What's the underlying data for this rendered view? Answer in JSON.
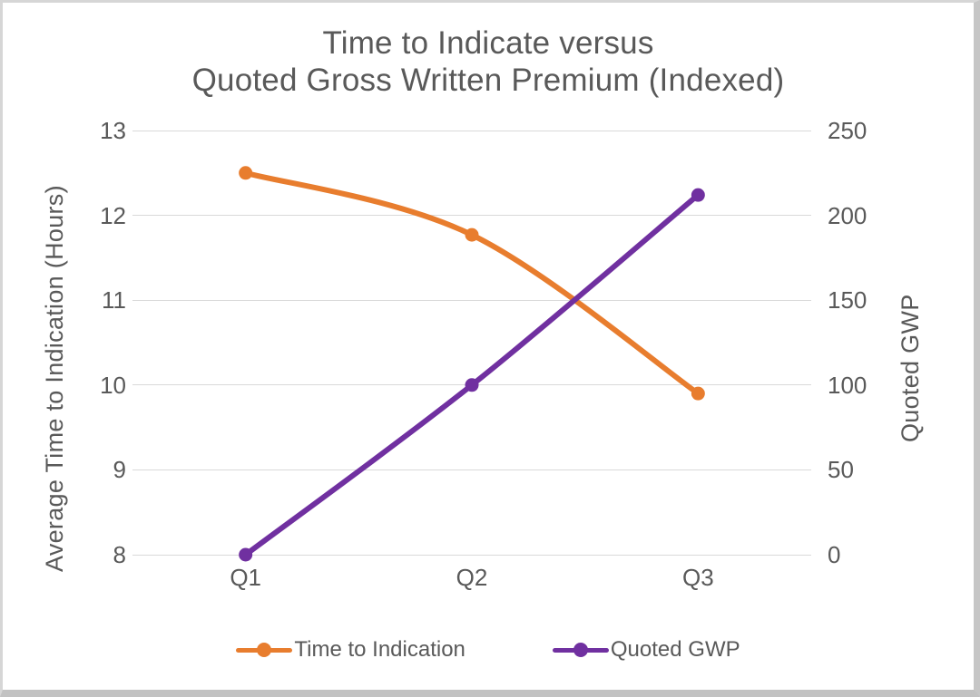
{
  "window": {
    "background": "#ffffff",
    "border_color": "#c6c6c6"
  },
  "chart_data": {
    "type": "line",
    "title_lines": [
      "Time to Indicate versus",
      "Quoted Gross Written Premium (Indexed)"
    ],
    "title": "Time to Indicate versus Quoted Gross Written Premium (Indexed)",
    "categories": [
      "Q1",
      "Q2",
      "Q3"
    ],
    "series": [
      {
        "name": "Time to Indication",
        "axis": "left",
        "color": "#e87d2e",
        "values": [
          12.5,
          11.77,
          9.9
        ]
      },
      {
        "name": "Quoted GWP",
        "axis": "right",
        "color": "#7030a0",
        "values": [
          0,
          100,
          212
        ]
      }
    ],
    "left_axis": {
      "label": "Average Time to Indication (Hours)",
      "min": 8,
      "max": 13,
      "ticks": [
        13,
        12,
        11,
        10,
        9,
        8
      ]
    },
    "right_axis": {
      "label": "Quoted GWP",
      "min": 0,
      "max": 250,
      "ticks": [
        250,
        200,
        150,
        100,
        50,
        0
      ]
    },
    "grid": true,
    "legend_position": "bottom",
    "text_color": "#595959",
    "grid_color": "#d9d9d9",
    "marker": "circle"
  }
}
